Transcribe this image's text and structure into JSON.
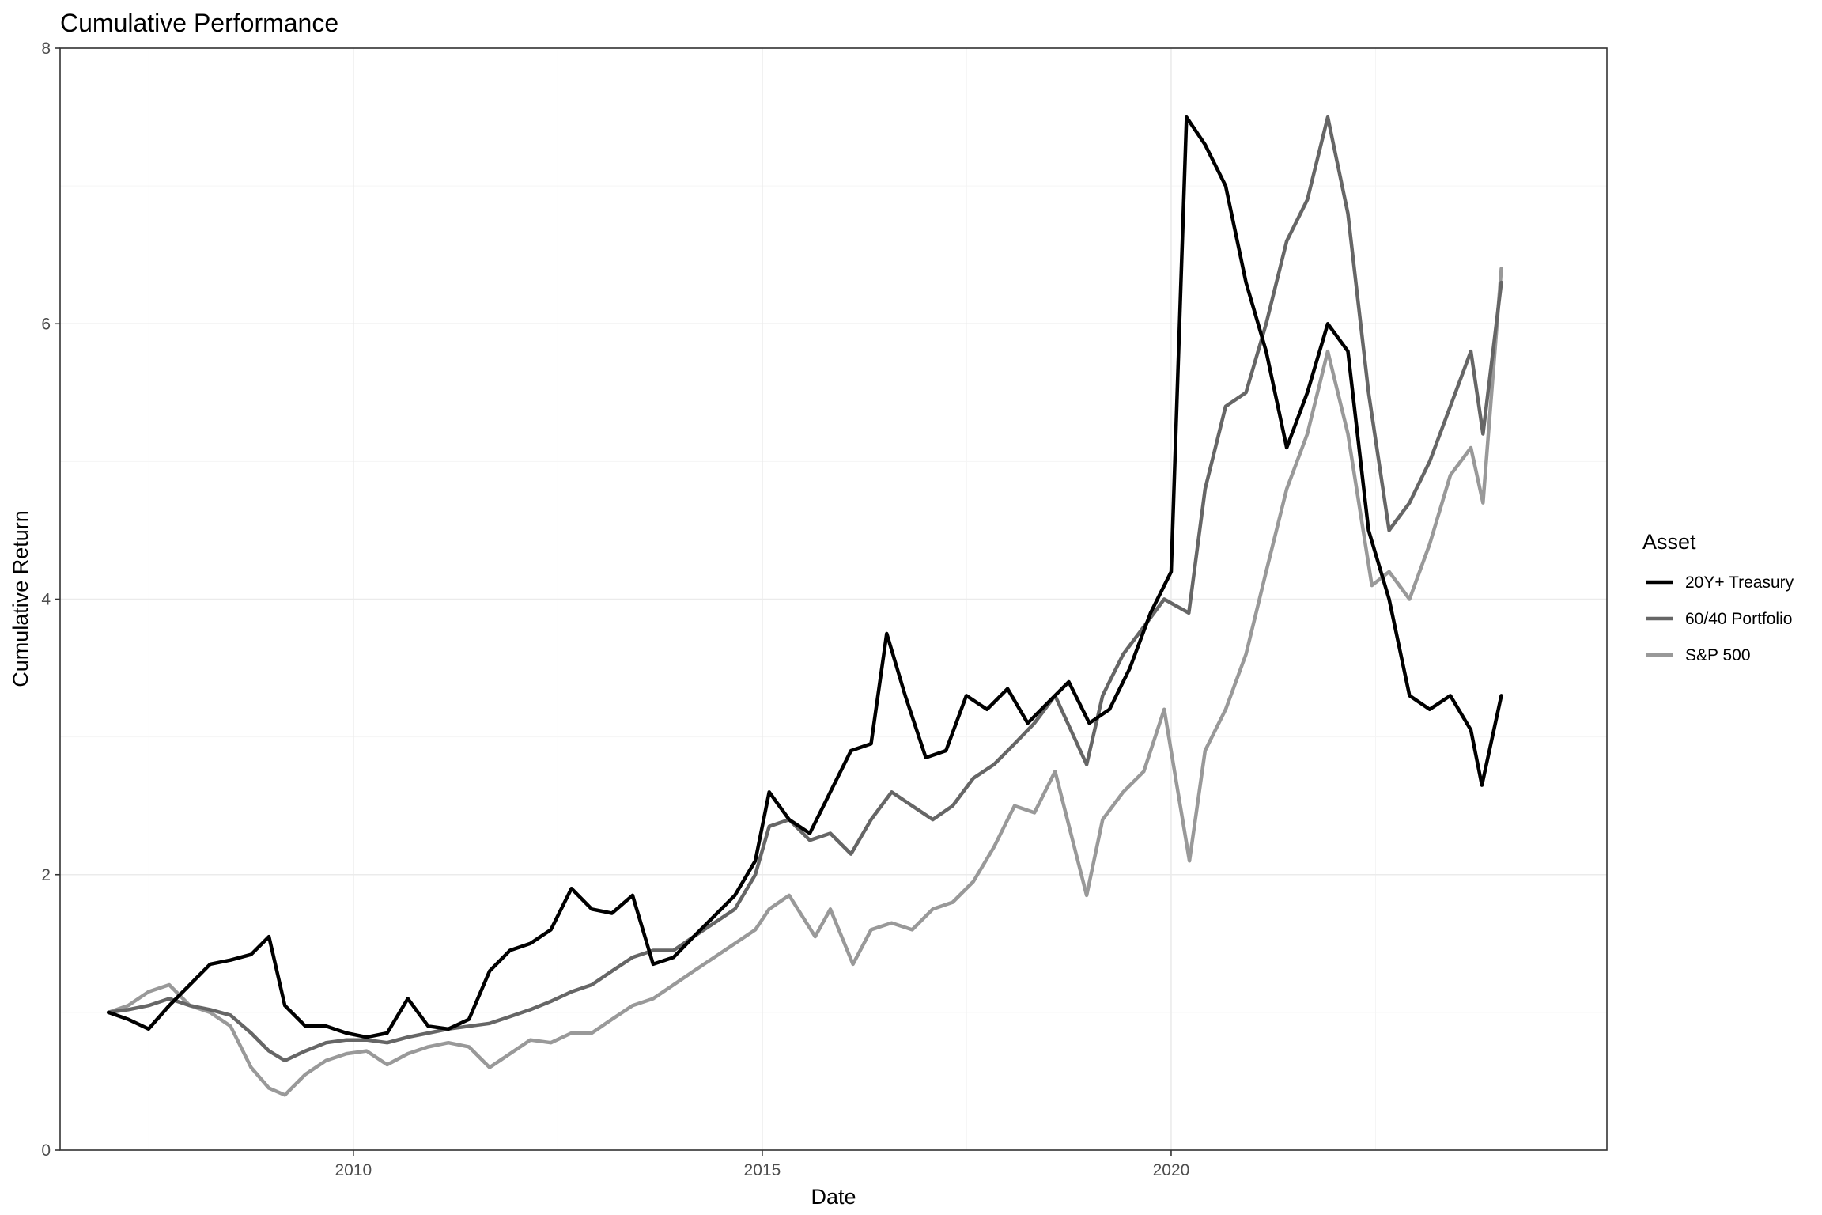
{
  "chart_data": {
    "type": "line",
    "title": "Cumulative Performance",
    "xlabel": "Date",
    "ylabel": "Cumulative Return",
    "x_ticks": [
      "2010",
      "2015",
      "2020"
    ],
    "y_ticks": [
      "0",
      "2",
      "4",
      "6",
      "8"
    ],
    "xlim": [
      "2006-06-01",
      "2025-05-01"
    ],
    "ylim": [
      0,
      8
    ],
    "grid": true,
    "legend": {
      "title": "Asset",
      "position": "right"
    },
    "series": [
      {
        "name": "20Y+ Treasury",
        "color": "#000000",
        "x": [
          "2007-01-03",
          "2007-04-01",
          "2007-07-01",
          "2007-10-01",
          "2008-01-01",
          "2008-04-01",
          "2008-07-01",
          "2008-10-01",
          "2008-12-20",
          "2009-03-01",
          "2009-06-01",
          "2009-09-01",
          "2009-12-01",
          "2010-03-01",
          "2010-06-01",
          "2010-09-01",
          "2010-12-01",
          "2011-03-01",
          "2011-06-01",
          "2011-09-01",
          "2011-12-01",
          "2012-03-01",
          "2012-06-01",
          "2012-09-01",
          "2012-12-01",
          "2013-03-01",
          "2013-06-01",
          "2013-09-01",
          "2013-12-01",
          "2014-03-01",
          "2014-06-01",
          "2014-09-01",
          "2014-12-01",
          "2015-02-01",
          "2015-05-01",
          "2015-08-01",
          "2015-11-01",
          "2016-02-01",
          "2016-05-01",
          "2016-07-10",
          "2016-10-01",
          "2017-01-01",
          "2017-04-01",
          "2017-07-01",
          "2017-10-01",
          "2018-01-01",
          "2018-04-01",
          "2018-07-01",
          "2018-10-01",
          "2019-01-01",
          "2019-04-01",
          "2019-07-01",
          "2019-10-01",
          "2020-01-01",
          "2020-03-10",
          "2020-06-01",
          "2020-09-01",
          "2020-12-01",
          "2021-03-01",
          "2021-06-01",
          "2021-09-01",
          "2021-12-01",
          "2022-03-01",
          "2022-06-01",
          "2022-09-01",
          "2022-12-01",
          "2023-03-01",
          "2023-06-01",
          "2023-09-01",
          "2023-10-20",
          "2024-01-15"
        ],
        "values": [
          1.0,
          0.95,
          0.88,
          1.05,
          1.2,
          1.35,
          1.38,
          1.42,
          1.55,
          1.05,
          0.9,
          0.9,
          0.85,
          0.82,
          0.85,
          1.1,
          0.9,
          0.88,
          0.95,
          1.3,
          1.45,
          1.5,
          1.6,
          1.9,
          1.75,
          1.72,
          1.85,
          1.35,
          1.4,
          1.55,
          1.7,
          1.85,
          2.1,
          2.6,
          2.4,
          2.3,
          2.6,
          2.9,
          2.95,
          3.75,
          3.3,
          2.85,
          2.9,
          3.3,
          3.2,
          3.35,
          3.1,
          3.25,
          3.4,
          3.1,
          3.2,
          3.5,
          3.9,
          4.2,
          7.5,
          7.3,
          7.0,
          6.3,
          5.8,
          5.1,
          5.5,
          6.0,
          5.8,
          4.5,
          4.0,
          3.3,
          3.2,
          3.3,
          3.05,
          2.65,
          3.3
        ]
      },
      {
        "name": "60/40 Portfolio",
        "color": "#666666",
        "x": [
          "2007-01-03",
          "2007-04-01",
          "2007-07-01",
          "2007-10-01",
          "2008-01-01",
          "2008-04-01",
          "2008-07-01",
          "2008-10-01",
          "2008-12-20",
          "2009-03-01",
          "2009-06-01",
          "2009-09-01",
          "2009-12-01",
          "2010-03-01",
          "2010-06-01",
          "2010-09-01",
          "2010-12-01",
          "2011-03-01",
          "2011-06-01",
          "2011-09-01",
          "2011-12-01",
          "2012-03-01",
          "2012-06-01",
          "2012-09-01",
          "2012-12-01",
          "2013-03-01",
          "2013-06-01",
          "2013-09-01",
          "2013-12-01",
          "2014-03-01",
          "2014-06-01",
          "2014-09-01",
          "2014-12-01",
          "2015-02-01",
          "2015-05-01",
          "2015-08-01",
          "2015-11-01",
          "2016-02-01",
          "2016-05-01",
          "2016-08-01",
          "2016-11-01",
          "2017-02-01",
          "2017-05-01",
          "2017-08-01",
          "2017-11-01",
          "2018-02-01",
          "2018-05-01",
          "2018-08-01",
          "2018-12-20",
          "2019-03-01",
          "2019-06-01",
          "2019-09-01",
          "2019-12-01",
          "2020-03-20",
          "2020-06-01",
          "2020-09-01",
          "2020-12-01",
          "2021-03-01",
          "2021-06-01",
          "2021-09-01",
          "2021-12-01",
          "2022-03-01",
          "2022-06-01",
          "2022-09-01",
          "2022-12-01",
          "2023-03-01",
          "2023-06-01",
          "2023-09-01",
          "2023-10-25",
          "2024-01-15"
        ],
        "values": [
          1.0,
          1.02,
          1.05,
          1.1,
          1.05,
          1.02,
          0.98,
          0.85,
          0.72,
          0.65,
          0.72,
          0.78,
          0.8,
          0.8,
          0.78,
          0.82,
          0.85,
          0.88,
          0.9,
          0.92,
          0.97,
          1.02,
          1.08,
          1.15,
          1.2,
          1.3,
          1.4,
          1.45,
          1.45,
          1.55,
          1.65,
          1.75,
          2.0,
          2.35,
          2.4,
          2.25,
          2.3,
          2.15,
          2.4,
          2.6,
          2.5,
          2.4,
          2.5,
          2.7,
          2.8,
          2.95,
          3.1,
          3.3,
          2.8,
          3.3,
          3.6,
          3.8,
          4.0,
          3.9,
          4.8,
          5.4,
          5.5,
          6.0,
          6.6,
          6.9,
          7.5,
          6.8,
          5.5,
          4.5,
          4.7,
          5.0,
          5.4,
          5.8,
          5.2,
          6.3
        ]
      },
      {
        "name": "S&P 500",
        "color": "#999999",
        "x": [
          "2007-01-03",
          "2007-04-01",
          "2007-07-01",
          "2007-10-01",
          "2008-01-01",
          "2008-04-01",
          "2008-07-01",
          "2008-10-01",
          "2008-12-20",
          "2009-03-01",
          "2009-06-01",
          "2009-09-01",
          "2009-12-01",
          "2010-03-01",
          "2010-06-01",
          "2010-09-01",
          "2010-12-01",
          "2011-03-01",
          "2011-06-01",
          "2011-09-01",
          "2011-12-01",
          "2012-03-01",
          "2012-06-01",
          "2012-09-01",
          "2012-12-01",
          "2013-03-01",
          "2013-06-01",
          "2013-09-01",
          "2013-12-01",
          "2014-03-01",
          "2014-06-01",
          "2014-09-01",
          "2014-12-01",
          "2015-02-01",
          "2015-05-01",
          "2015-08-25",
          "2015-11-01",
          "2016-02-10",
          "2016-05-01",
          "2016-08-01",
          "2016-11-01",
          "2017-02-01",
          "2017-05-01",
          "2017-08-01",
          "2017-11-01",
          "2018-02-01",
          "2018-05-01",
          "2018-08-01",
          "2018-12-20",
          "2019-03-01",
          "2019-06-01",
          "2019-09-01",
          "2019-12-01",
          "2020-03-23",
          "2020-06-01",
          "2020-09-01",
          "2020-12-01",
          "2021-03-01",
          "2021-06-01",
          "2021-09-01",
          "2021-12-01",
          "2022-03-01",
          "2022-06-16",
          "2022-09-01",
          "2022-12-01",
          "2023-03-01",
          "2023-06-01",
          "2023-09-01",
          "2023-10-25",
          "2024-01-15"
        ],
        "values": [
          1.0,
          1.05,
          1.15,
          1.2,
          1.05,
          1.0,
          0.9,
          0.6,
          0.45,
          0.4,
          0.55,
          0.65,
          0.7,
          0.72,
          0.62,
          0.7,
          0.75,
          0.78,
          0.75,
          0.6,
          0.7,
          0.8,
          0.78,
          0.85,
          0.85,
          0.95,
          1.05,
          1.1,
          1.2,
          1.3,
          1.4,
          1.5,
          1.6,
          1.75,
          1.85,
          1.55,
          1.75,
          1.35,
          1.6,
          1.65,
          1.6,
          1.75,
          1.8,
          1.95,
          2.2,
          2.5,
          2.45,
          2.75,
          1.85,
          2.4,
          2.6,
          2.75,
          3.2,
          2.1,
          2.9,
          3.2,
          3.6,
          4.2,
          4.8,
          5.2,
          5.8,
          5.2,
          4.1,
          4.2,
          4.0,
          4.4,
          4.9,
          5.1,
          4.7,
          6.4
        ]
      }
    ]
  }
}
